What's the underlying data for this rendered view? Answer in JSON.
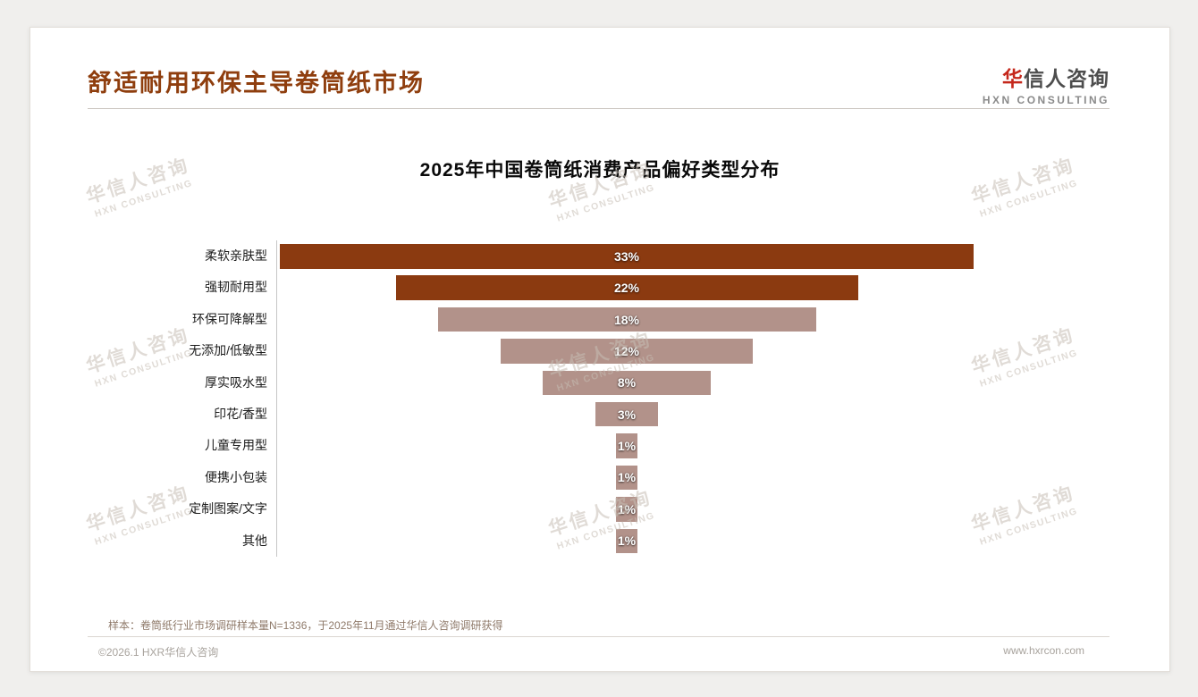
{
  "page": {
    "title": "舒适耐用环保主导卷筒纸市场",
    "accent_color": "#8F3E0E",
    "footnote": "样本：卷筒纸行业市场调研样本量N=1336，于2025年11月通过华信人咨询调研获得",
    "footer_left": "©2026.1 HXR华信人咨询",
    "footer_right": "www.hxrcon.com"
  },
  "logo": {
    "cn_first": "华",
    "cn_rest": "信人咨询",
    "en": "HXN CONSULTING",
    "accent_color": "#C5281C"
  },
  "watermark": {
    "cn": "华信人咨询",
    "en": "HXN CONSULTING"
  },
  "chart_data": {
    "type": "bar",
    "orientation": "horizontal-centered-funnel",
    "title": "2025年中国卷筒纸消费产品偏好类型分布",
    "categories": [
      "柔软亲肤型",
      "强韧耐用型",
      "环保可降解型",
      "无添加/低敏型",
      "厚实吸水型",
      "印花/香型",
      "儿童专用型",
      "便携小包装",
      "定制图案/文字",
      "其他"
    ],
    "values": [
      33,
      22,
      18,
      12,
      8,
      3,
      1,
      1,
      1,
      1
    ],
    "value_labels": [
      "33%",
      "22%",
      "18%",
      "12%",
      "8%",
      "3%",
      "1%",
      "1%",
      "1%",
      "1%"
    ],
    "series_colors": [
      "#8B3A10",
      "#8B3A10",
      "#B2928A",
      "#B2928A",
      "#B2928A",
      "#B2928A",
      "#B2928A",
      "#B2928A",
      "#B2928A",
      "#B2928A"
    ],
    "colors": {
      "primary": "#8B3A10",
      "secondary": "#B2928A"
    },
    "xlim": [
      0,
      33
    ],
    "grid": false,
    "legend": false
  }
}
